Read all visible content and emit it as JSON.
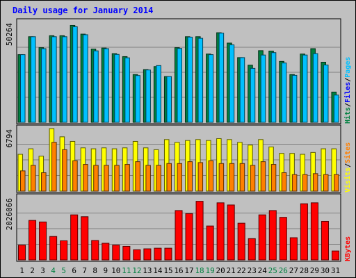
{
  "chart_data": {
    "type": "bar",
    "title": "Daily usage for January 2014",
    "categories": [
      "1",
      "2",
      "3",
      "4",
      "5",
      "6",
      "7",
      "8",
      "9",
      "10",
      "11",
      "12",
      "13",
      "14",
      "15",
      "16",
      "17",
      "18",
      "19",
      "20",
      "21",
      "22",
      "23",
      "24",
      "25",
      "26",
      "27",
      "28",
      "29",
      "30",
      "31"
    ],
    "weekend_days": [
      "4",
      "5",
      "11",
      "12",
      "18",
      "19",
      "25",
      "26"
    ],
    "panels": [
      {
        "id": "hits-files-pages",
        "max_label": "50264",
        "ymax": 50264,
        "legend": [
          {
            "label": "Pages",
            "color": "#00c0ff"
          },
          {
            "label": "Files",
            "color": "#0000ff"
          },
          {
            "label": "Hits",
            "color": "#008040"
          }
        ],
        "series": [
          {
            "name": "Hits",
            "color": "#008040",
            "values": [
              34000,
              43000,
              37500,
              43500,
              43500,
              48700,
              44300,
              36800,
              37300,
              34500,
              33000,
              24000,
              26500,
              28000,
              23000,
              37500,
              43000,
              43000,
              34300,
              45000,
              39800,
              32500,
              28700,
              36000,
              35800,
              30600,
              24000,
              34300,
              37000,
              30200,
              15200
            ]
          },
          {
            "name": "Pages",
            "color": "#00c0ff",
            "values": [
              34000,
              43000,
              37000,
              43000,
              43000,
              48000,
              44000,
              35900,
              37000,
              34100,
              32400,
              23500,
              26300,
              28500,
              23000,
              37100,
              42800,
              42200,
              34000,
              44800,
              38900,
              32500,
              27100,
              33800,
              35000,
              29800,
              23600,
              33800,
              34500,
              28800,
              13700
            ]
          }
        ]
      },
      {
        "id": "visits-sites",
        "max_label": "6794",
        "ymax": 6794,
        "legend": [
          {
            "label": "Sites",
            "color": "#ff8000"
          },
          {
            "label": "Visits",
            "color": "#ffff00"
          }
        ],
        "series": [
          {
            "name": "Visits",
            "color": "#ffff00",
            "values": [
              4000,
              4600,
              3800,
              6794,
              5900,
              5400,
              4700,
              4600,
              4700,
              4600,
              4700,
              5400,
              4700,
              4500,
              5600,
              5300,
              5500,
              5600,
              5500,
              5700,
              5600,
              5300,
              5000,
              5600,
              4800,
              4100,
              4100,
              4000,
              4200,
              4600,
              4600
            ]
          },
          {
            "name": "Sites",
            "color": "#ff8000",
            "values": [
              2200,
              2800,
              2000,
              5300,
              4500,
              3300,
              2900,
              2800,
              2800,
              2800,
              2900,
              3200,
              2800,
              2800,
              3000,
              3000,
              3200,
              3100,
              3300,
              3000,
              3000,
              3000,
              2800,
              3200,
              2900,
              2000,
              1800,
              1800,
              1900,
              1800,
              1800
            ]
          }
        ]
      },
      {
        "id": "kbytes",
        "max_label": "2026066",
        "ymax": 2026066,
        "legend": [
          {
            "label": "KBytes",
            "color": "#ff0000"
          }
        ],
        "series": [
          {
            "name": "KBytes",
            "color": "#ff0000",
            "values": [
              480000,
              1280000,
              1230000,
              760000,
              620000,
              1460000,
              1400000,
              630000,
              540000,
              480000,
              440000,
              330000,
              360000,
              380000,
              380000,
              1600000,
              1500000,
              1900000,
              1100000,
              1850000,
              1780000,
              1190000,
              690000,
              1460000,
              1600000,
              1380000,
              720000,
              1820000,
              1850000,
              1250000,
              290000
            ]
          }
        ]
      }
    ]
  }
}
